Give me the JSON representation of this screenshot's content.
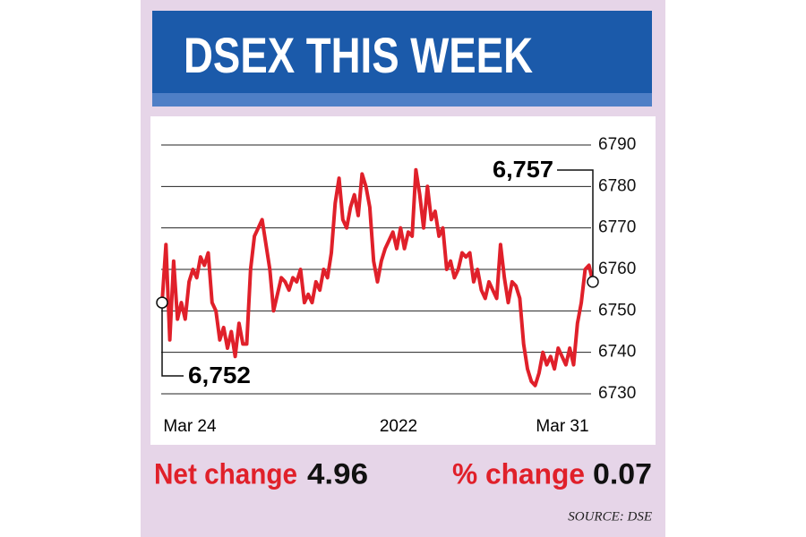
{
  "chart_data": {
    "type": "line",
    "title": "DSEX THIS WEEK",
    "x_labels": [
      "Mar 24",
      "2022",
      "Mar 31"
    ],
    "series": [
      {
        "name": "DSEX",
        "color": "#e0202a",
        "values": [
          6752,
          6766,
          6743,
          6762,
          6748,
          6752,
          6748,
          6757,
          6760,
          6758,
          6763,
          6761,
          6764,
          6752,
          6750,
          6743,
          6746,
          6741,
          6745,
          6739,
          6747,
          6742,
          6742,
          6760,
          6768,
          6770,
          6772,
          6766,
          6760,
          6750,
          6754,
          6758,
          6757,
          6755,
          6758,
          6757,
          6760,
          6752,
          6754,
          6752,
          6757,
          6755,
          6760,
          6758,
          6764,
          6776,
          6782,
          6772,
          6770,
          6775,
          6778,
          6773,
          6783,
          6780,
          6775,
          6762,
          6757,
          6762,
          6765,
          6767,
          6769,
          6765,
          6770,
          6765,
          6769,
          6768,
          6784,
          6778,
          6770,
          6780,
          6772,
          6774,
          6768,
          6770,
          6760,
          6762,
          6758,
          6760,
          6764,
          6763,
          6764,
          6757,
          6760,
          6755,
          6753,
          6757,
          6755,
          6753,
          6766,
          6758,
          6752,
          6757,
          6756,
          6753,
          6742,
          6736,
          6733,
          6732,
          6735,
          6740,
          6737,
          6739,
          6736,
          6741,
          6739,
          6737,
          6741,
          6737,
          6747,
          6752,
          6760,
          6761,
          6757
        ]
      }
    ],
    "ylim": [
      6730,
      6790
    ],
    "yticks": [
      6730,
      6740,
      6750,
      6760,
      6770,
      6780,
      6790
    ],
    "grid": true,
    "annotations": [
      {
        "value": 6752,
        "label": "6,752"
      },
      {
        "value": 6757,
        "label": "6,757"
      }
    ],
    "stats": [
      {
        "label": "Net change",
        "value": 4.96
      },
      {
        "label": "% change",
        "value": 0.07
      }
    ],
    "source": "SOURCE: DSE"
  }
}
